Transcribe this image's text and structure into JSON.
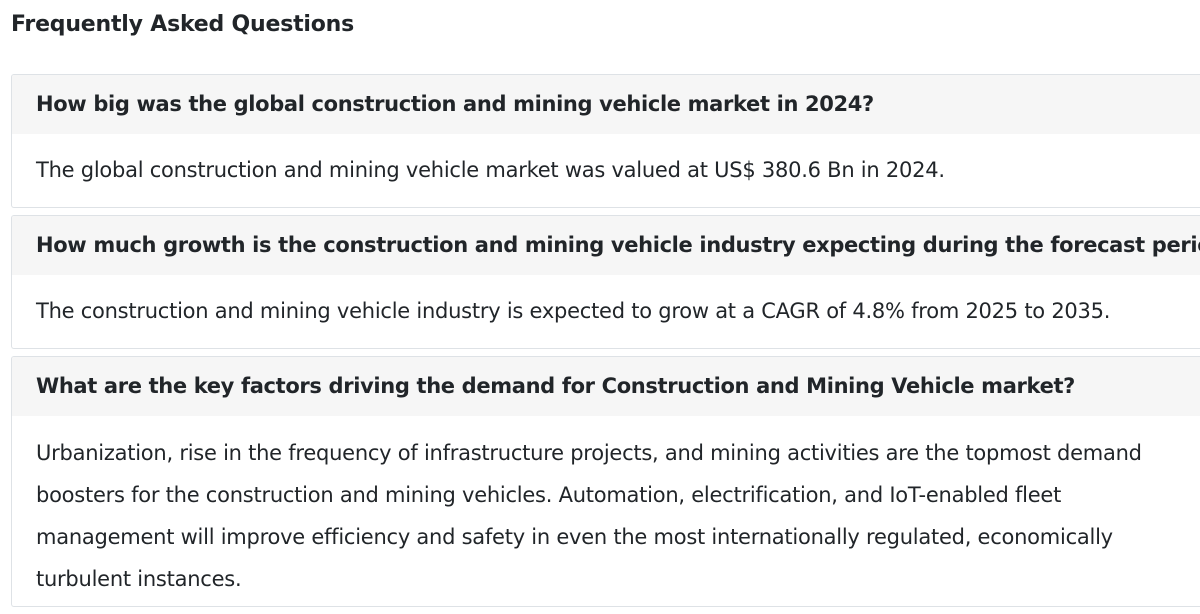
{
  "faq": {
    "title": "Frequently Asked Questions",
    "items": [
      {
        "question": "How big was the global construction and mining vehicle market in 2024?",
        "answer": "The global construction and mining vehicle market was valued at US$ 380.6 Bn in 2024."
      },
      {
        "question": "How much growth is the construction and mining vehicle industry expecting during the forecast period?",
        "answer": "The construction and mining vehicle industry is expected to grow at a CAGR of 4.8% from 2025 to 2035."
      },
      {
        "question": "What are the key factors driving the demand for Construction and Mining Vehicle market?",
        "answer": "Urbanization, rise in the frequency of infrastructure projects, and mining activities are the topmost demand boosters for the construction and mining vehicles. Automation, electrification, and IoT-enabled fleet management will improve efficiency and safety in even the most internationally regulated, economically turbulent instances."
      }
    ]
  }
}
